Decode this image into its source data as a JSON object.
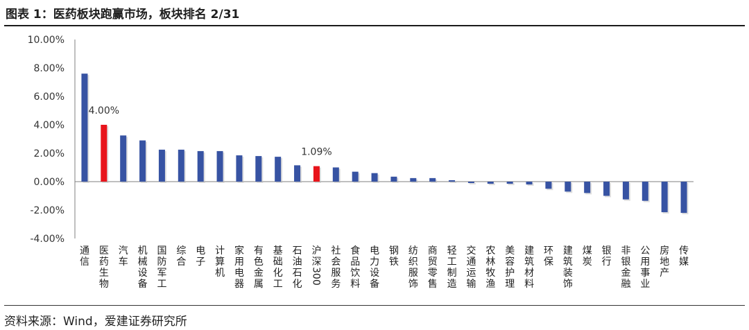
{
  "figure_title": "图表 1：医药板块跑赢市场，板块排名 2/31",
  "source_note": "资料来源：Wind，爱建证券研究所",
  "colors": {
    "default_bar": "#3753A3",
    "highlight_bar": "#E8141B",
    "axis": "#7f7f7f"
  },
  "chart_data": {
    "type": "bar",
    "title": "",
    "xlabel": "",
    "ylabel": "",
    "ylim": [
      -4,
      10
    ],
    "yticks": [
      -4,
      -2,
      0,
      2,
      4,
      6,
      8,
      10
    ],
    "ytick_labels": [
      "-4.00%",
      "-2.00%",
      "0.00%",
      "2.00%",
      "4.00%",
      "6.00%",
      "8.00%",
      "10.00%"
    ],
    "grid": false,
    "legend": "none",
    "categories": [
      "通信",
      "医药生物",
      "汽车",
      "机械设备",
      "国防军工",
      "综合",
      "电子",
      "计算机",
      "家用电器",
      "有色金属",
      "基础化工",
      "石油石化",
      "沪深300",
      "社会服务",
      "食品饮料",
      "电力设备",
      "钢铁",
      "纺织服饰",
      "商贸零售",
      "轻工制造",
      "交通运输",
      "农林牧渔",
      "美容护理",
      "建筑材料",
      "环保",
      "建筑装饰",
      "煤炭",
      "银行",
      "非银金融",
      "公用事业",
      "房地产",
      "传媒"
    ],
    "values": [
      7.6,
      4.0,
      3.25,
      2.9,
      2.25,
      2.25,
      2.15,
      2.15,
      1.85,
      1.8,
      1.75,
      1.15,
      1.09,
      1.0,
      0.7,
      0.6,
      0.35,
      0.25,
      0.25,
      0.1,
      -0.1,
      -0.15,
      -0.15,
      -0.2,
      -0.5,
      -0.7,
      -0.8,
      -1.0,
      -1.25,
      -1.35,
      -2.15,
      -2.2
    ],
    "highlight_indices": [
      1,
      12
    ],
    "data_labels": [
      {
        "index": 1,
        "text": "4.00%"
      },
      {
        "index": 12,
        "text": "1.09%"
      }
    ]
  }
}
